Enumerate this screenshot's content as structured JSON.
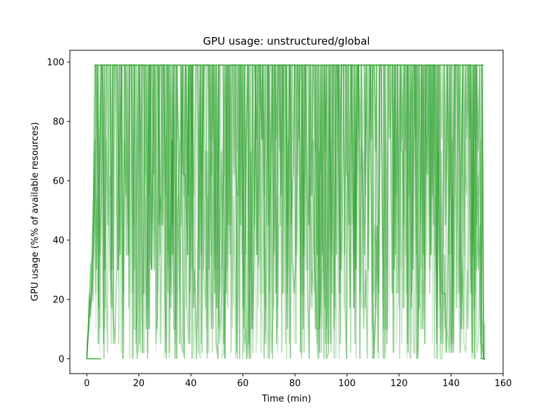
{
  "chart_data": {
    "type": "line",
    "title": "GPU usage: unstructured/global",
    "xlabel": "Time (min)",
    "ylabel": "GPU usage (%% of available resources)",
    "xlim": [
      -6.5,
      160
    ],
    "ylim": [
      -5,
      104
    ],
    "x_ticks": [
      0,
      20,
      40,
      60,
      80,
      100,
      120,
      140,
      160
    ],
    "y_ticks": [
      0,
      20,
      40,
      60,
      80,
      100
    ],
    "grid": false,
    "legend": "none",
    "color": "#2ca02c",
    "series": [
      {
        "x": [
          0,
          0.6,
          1.2,
          1.8,
          2.4,
          3,
          4,
          6,
          10,
          20,
          30,
          40,
          50,
          60,
          70,
          80,
          90,
          100,
          110,
          120,
          130,
          140,
          150,
          152,
          153
        ],
        "values": [
          0,
          17,
          30,
          45,
          48,
          99,
          99,
          99,
          99,
          99,
          99,
          99,
          99,
          99,
          99,
          99,
          99,
          99,
          99,
          99,
          99,
          99,
          99,
          0,
          0
        ]
      }
    ]
  }
}
